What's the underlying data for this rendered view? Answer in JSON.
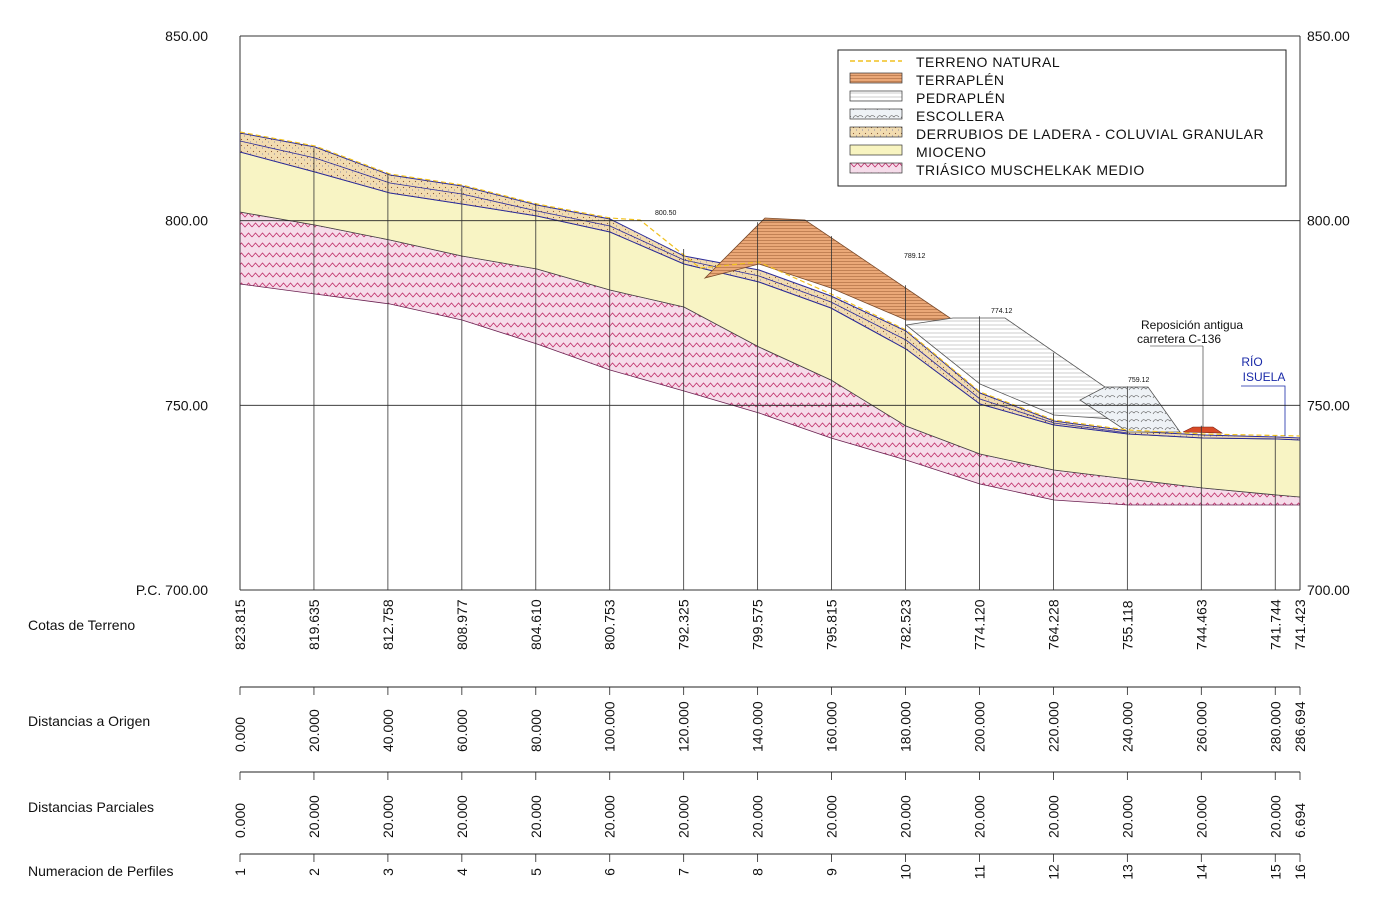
{
  "chart_data": {
    "type": "area",
    "ylim": [
      700,
      850
    ],
    "left_ticks": [
      "850.00",
      "800.00",
      "750.00",
      "P.C. 700.00"
    ],
    "right_ticks": [
      "850.00",
      "800.00",
      "750.00",
      "700.00"
    ],
    "tick_values": [
      850,
      800,
      750,
      700
    ],
    "x": [
      0,
      20,
      40,
      60,
      80,
      100,
      120,
      140,
      160,
      180,
      200,
      220,
      240,
      260,
      280,
      286.694
    ],
    "legend": [
      {
        "label": "TERRENO NATURAL",
        "swatch": "dashed-line",
        "color": "#f0c020"
      },
      {
        "label": "TERRAPLÉN",
        "swatch": "hatch-horizontal",
        "color": "#e8a068"
      },
      {
        "label": "PEDRAPLÉN",
        "swatch": "hatch-lines",
        "color": "#dddddd"
      },
      {
        "label": "ESCOLLERA",
        "swatch": "stones",
        "color": "#c8d8e8"
      },
      {
        "label": "DERRUBIOS DE LADERA - COLUVIAL GRANULAR",
        "swatch": "dots",
        "color": "#f0d8a8"
      },
      {
        "label": "MIOCENO",
        "swatch": "fill",
        "color": "#f8f4c0"
      },
      {
        "label": "TRIÁSICO MUSCHELKAK MEDIO",
        "swatch": "zigzag",
        "color": "#f4d8e8"
      }
    ],
    "annotations": {
      "road": [
        "Reposición antigua",
        "carretera C-136"
      ],
      "river": [
        "RÍO",
        "ISUELA"
      ],
      "cote_marks": [
        "800.50",
        "789.12",
        "774.12",
        "759.12"
      ]
    },
    "table": {
      "rows": [
        {
          "label": "Cotas de Terreno",
          "values": [
            "823.815",
            "819.635",
            "812.758",
            "808.977",
            "804.610",
            "800.753",
            "792.325",
            "799.575",
            "795.815",
            "782.523",
            "774.120",
            "764.228",
            "755.118",
            "744.463",
            "741.744",
            "741.423"
          ]
        },
        {
          "label": "Distancias a Origen",
          "values": [
            "0.000",
            "20.000",
            "40.000",
            "60.000",
            "80.000",
            "100.000",
            "120.000",
            "140.000",
            "160.000",
            "180.000",
            "200.000",
            "220.000",
            "240.000",
            "260.000",
            "280.000",
            "286.694"
          ]
        },
        {
          "label": "Distancias Parciales",
          "values": [
            "0.000",
            "20.000",
            "20.000",
            "20.000",
            "20.000",
            "20.000",
            "20.000",
            "20.000",
            "20.000",
            "20.000",
            "20.000",
            "20.000",
            "20.000",
            "20.000",
            "20.000",
            "6.694"
          ]
        },
        {
          "label": "Numeracion de Perfiles",
          "values": [
            "1",
            "2",
            "3",
            "4",
            "5",
            "6",
            "7",
            "8",
            "9",
            "10",
            "11",
            "12",
            "13",
            "14",
            "15",
            "16"
          ]
        }
      ]
    }
  },
  "colors": {
    "mioceno": "#f8f4c4",
    "triasico": "#f6dcea",
    "triasico_line": "#c0306a",
    "derrubios": "#f2dcb0",
    "terraplen": "#eaa878",
    "pedraplen": "#ffffff",
    "contact_line": "#2b2b9a",
    "river": "#1a2aa8"
  }
}
